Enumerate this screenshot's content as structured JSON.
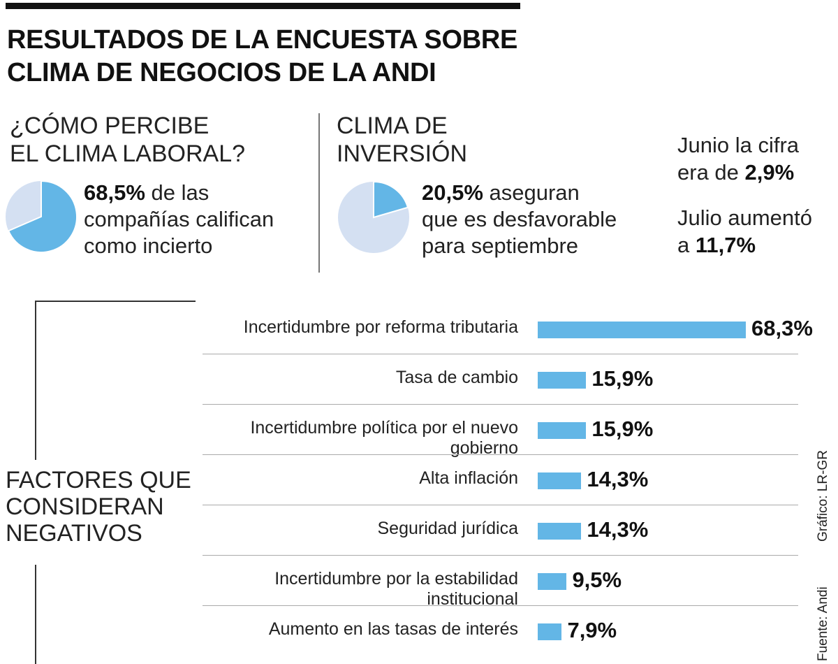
{
  "title": {
    "line1": "RESULTADOS DE LA ENCUESTA SOBRE",
    "line2": "CLIMA DE NEGOCIOS DE LA ANDI"
  },
  "section1": {
    "heading_line1": "¿CÓMO PERCIBE",
    "heading_line2": "EL CLIMA LABORAL?",
    "value": "68,5%",
    "percent": 68.5,
    "text_line1": " de las",
    "text_line2": "compañías califican",
    "text_line3": "como incierto"
  },
  "section2": {
    "heading_line1": "CLIMA DE",
    "heading_line2": "INVERSIÓN",
    "value": "20,5%",
    "percent": 20.5,
    "text_line1": " aseguran",
    "text_line2": "que es desfavorable",
    "text_line3": "para septiembre"
  },
  "section3": {
    "junio_line1": "Junio la cifra",
    "junio_prefix": "era de ",
    "junio_value": "2,9%",
    "julio_line1": "Julio aumentó",
    "julio_prefix": "a ",
    "julio_value": "11,7%"
  },
  "factors_label": {
    "line1": "FACTORES QUE",
    "line2": "CONSIDERAN",
    "line3": "NEGATIVOS"
  },
  "colors": {
    "bar": "#63b6e6",
    "pie_main": "#63b6e6",
    "pie_rest": "#d4e0f2",
    "pie_border": "#ffffff"
  },
  "chart_data": {
    "type": "bar",
    "orientation": "horizontal",
    "title": "FACTORES QUE CONSIDERAN NEGATIVOS",
    "categories": [
      "Incertidumbre por reforma tributaria",
      "Tasa de cambio",
      "Incertidumbre política por el nuevo gobierno",
      "Alta inflación",
      "Seguridad jurídica",
      "Incertidumbre por la estabilidad institucional",
      "Aumento en las tasas de interés"
    ],
    "values": [
      68.3,
      15.9,
      15.9,
      14.3,
      14.3,
      9.5,
      7.9
    ],
    "value_labels": [
      "68,3%",
      "15,9%",
      "15,9%",
      "14,3%",
      "14,3%",
      "9,5%",
      "7,9%"
    ],
    "unit": "%"
  },
  "credits": {
    "source": "Fuente: Andi",
    "graphic": "Gráfico: LR-GR"
  }
}
